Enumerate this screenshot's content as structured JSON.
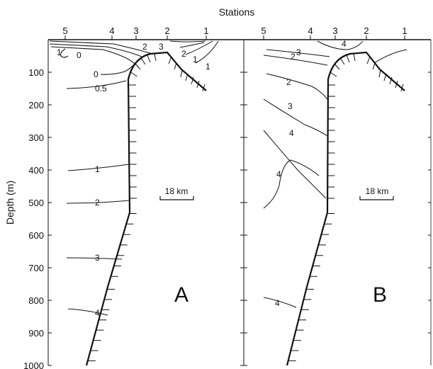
{
  "title": "Stations",
  "y_axis_label": "Depth (m)",
  "stations": [
    "5",
    "4",
    "3",
    "2",
    "1"
  ],
  "depth_ticks": [
    "100",
    "200",
    "300",
    "400",
    "500",
    "600",
    "700",
    "800",
    "900",
    "1000"
  ],
  "panel_a": {
    "letter": "A",
    "scale_label": "18 km",
    "contour_labels": [
      "1",
      "0",
      "2",
      "3",
      "2",
      "1",
      "1",
      "0",
      "0.5",
      "1",
      "2",
      "3",
      "4"
    ]
  },
  "panel_b": {
    "letter": "B",
    "scale_label": "18 km",
    "contour_labels": [
      "4",
      "3",
      "2",
      "2",
      "3",
      "4",
      "4",
      "4"
    ]
  }
}
